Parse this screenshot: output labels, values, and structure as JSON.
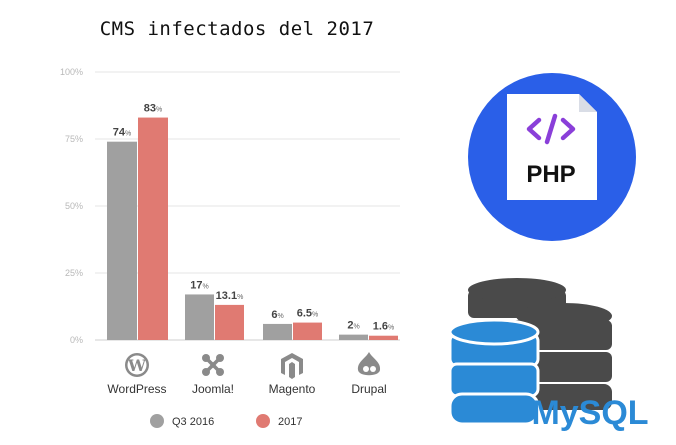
{
  "title": "CMS infectados del 2017",
  "chart_data": {
    "type": "bar",
    "categories": [
      "WordPress",
      "Joomla!",
      "Magento",
      "Drupal"
    ],
    "series": [
      {
        "name": "Q3 2016",
        "values": [
          74,
          17,
          6,
          2
        ],
        "labels": [
          "74",
          "17",
          "6",
          "2"
        ],
        "color": "#a0a0a0"
      },
      {
        "name": "2017",
        "values": [
          83,
          13.1,
          6.5,
          1.6
        ],
        "labels": [
          "83",
          "13.1",
          "6.5",
          "1.6"
        ],
        "color": "#e07a72"
      }
    ],
    "value_suffix": "%",
    "yticks": [
      "0%",
      "25%",
      "50%",
      "75%",
      "100%"
    ],
    "ylim": [
      0,
      100
    ],
    "grid": true,
    "legend": "bottom",
    "category_icons": [
      "wordpress-icon",
      "joomla-icon",
      "magento-icon",
      "drupal-icon"
    ]
  },
  "logos": {
    "php": {
      "text": "PHP",
      "code_glyph": "</>",
      "circle_color": "#2a5fe8",
      "glyph_color": "#8a3fd9"
    },
    "mysql": {
      "text": "MySQL",
      "front_color": "#2b8ad6",
      "back_color": "#4a4a4a"
    }
  }
}
